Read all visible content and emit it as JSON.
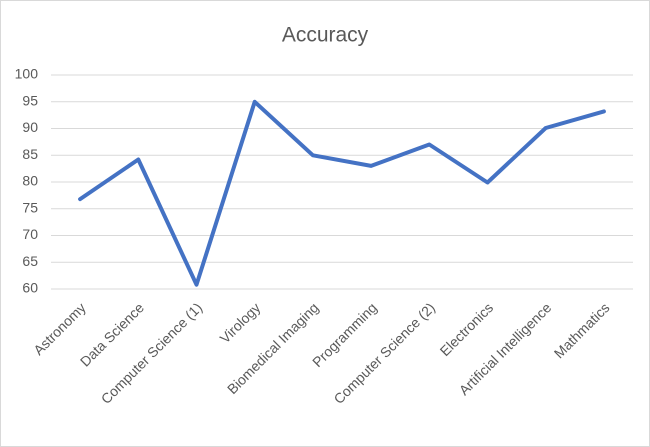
{
  "chart_data": {
    "type": "line",
    "title": "Accuracy",
    "categories": [
      "Astronomy",
      "Data Science",
      "Computer Science (1)",
      "Virology",
      "Biomedical Imaging",
      "Programming",
      "Computer Science (2)",
      "Electronics",
      "Artificial Intelligence",
      "Mathmatics"
    ],
    "values": [
      76.8,
      84.2,
      60.8,
      95,
      85,
      83,
      87,
      79.9,
      90.1,
      93.2
    ],
    "color": "#4472c4",
    "ylim": [
      60,
      100
    ],
    "yticks": [
      60,
      65,
      70,
      75,
      80,
      85,
      90,
      95,
      100
    ],
    "grid": true
  }
}
